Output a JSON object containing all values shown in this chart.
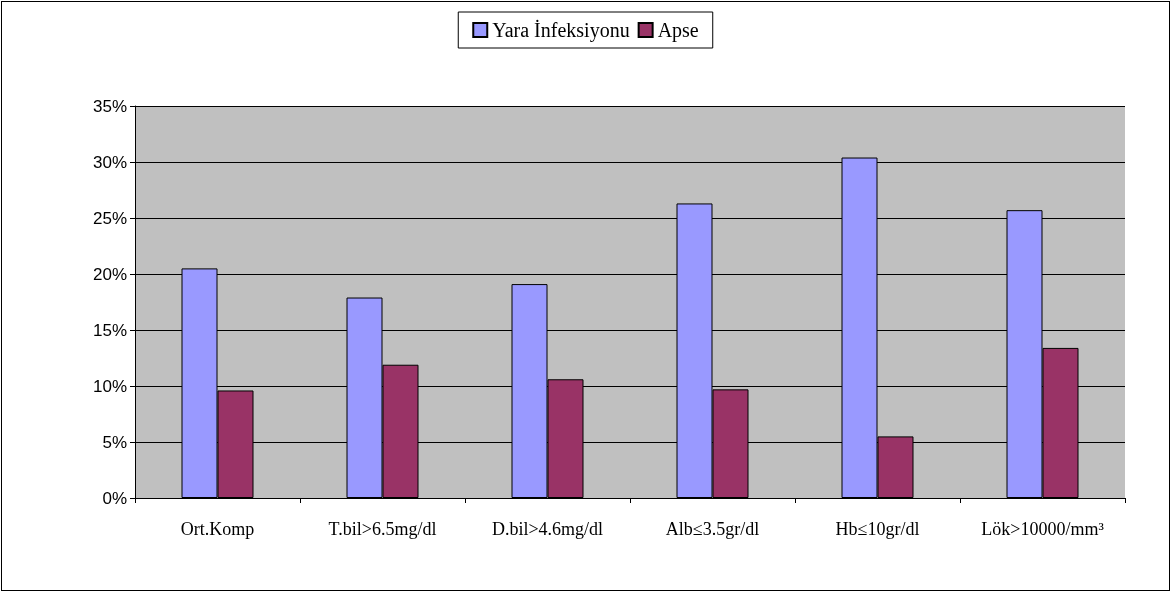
{
  "chart_data": {
    "type": "bar",
    "categories": [
      "Ort.Komp",
      "T.bil>6.5mg/dl",
      "D.bil>4.6mg/dl",
      "Alb≤3.5gr/dl",
      "Hb≤10gr/dl",
      "Lök>10000/mm³"
    ],
    "series": [
      {
        "name": "Yara İnfeksiyonu",
        "color": "#9999ff",
        "values": [
          20.5,
          17.9,
          19.1,
          26.3,
          30.4,
          25.7
        ]
      },
      {
        "name": "Apse",
        "color": "#993366",
        "values": [
          9.6,
          11.9,
          10.6,
          9.7,
          5.5,
          13.4
        ]
      }
    ],
    "ylim": [
      0,
      35
    ],
    "yticks": [
      {
        "value": 0,
        "label": "0%"
      },
      {
        "value": 5,
        "label": "5%"
      },
      {
        "value": 10,
        "label": "10%"
      },
      {
        "value": 15,
        "label": "15%"
      },
      {
        "value": 20,
        "label": "20%"
      },
      {
        "value": 25,
        "label": "25%"
      },
      {
        "value": 30,
        "label": "30%"
      },
      {
        "value": 35,
        "label": "35%"
      }
    ],
    "grid": "y",
    "legend": "top"
  }
}
